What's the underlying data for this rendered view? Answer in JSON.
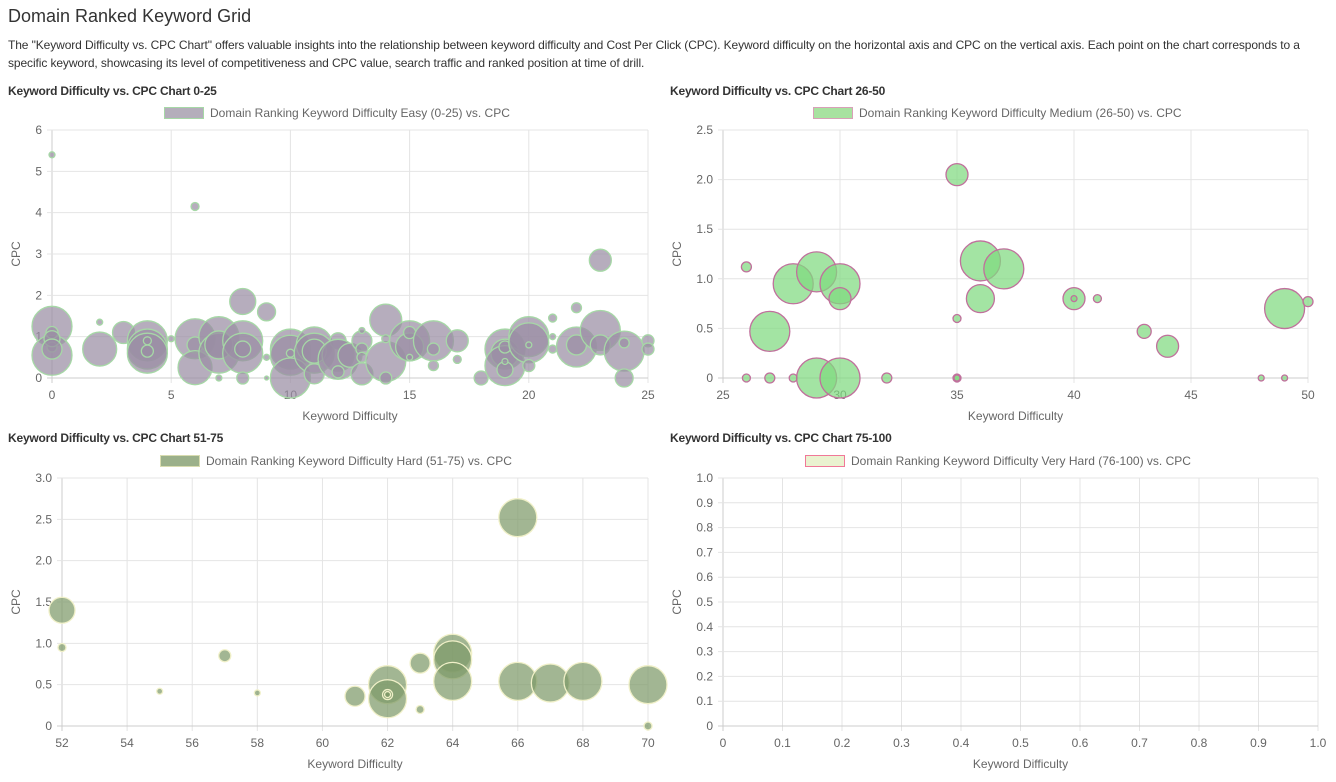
{
  "page": {
    "title": "Domain Ranked Keyword Grid",
    "intro": "The \"Keyword Difficulty vs. CPC Chart\" offers valuable insights into the relationship between keyword difficulty and Cost Per Click (CPC). Keyword difficulty on the horizontal axis and CPC on the vertical axis. Each point on the chart corresponds to a specific keyword, showcasing its level of competitiveness and CPC value, search traffic and ranked position at time of drill."
  },
  "chart_data": [
    {
      "type": "scatter",
      "title": "Keyword Difficulty vs. CPC Chart 0-25",
      "legend": "Domain Ranking Keyword Difficulty Easy (0-25) vs. CPC",
      "legend_position": "top",
      "xlabel": "Keyword Difficulty",
      "ylabel": "CPC",
      "xlim": [
        0,
        25
      ],
      "ylim": [
        0,
        6
      ],
      "xticks": [
        "0",
        "5",
        "10",
        "15",
        "20",
        "25"
      ],
      "yticks": [
        "0",
        "1",
        "2",
        "3",
        "4",
        "5",
        "6"
      ],
      "grid": true,
      "colors": {
        "fill": "#9a8ea3",
        "border": "#a6d8a6",
        "legend_fill": "#b4aebb",
        "legend_border": "#a6d8a6"
      },
      "points": [
        {
          "x": 0,
          "y": 5.4,
          "r": 3
        },
        {
          "x": 0,
          "y": 1.25,
          "r": 20
        },
        {
          "x": 0,
          "y": 0.55,
          "r": 20
        },
        {
          "x": 0,
          "y": 1.1,
          "r": 6
        },
        {
          "x": 0,
          "y": 0.75,
          "r": 5
        },
        {
          "x": 0,
          "y": 0.95,
          "r": 8
        },
        {
          "x": 0,
          "y": 0.7,
          "r": 10
        },
        {
          "x": 2,
          "y": 1.35,
          "r": 3
        },
        {
          "x": 2,
          "y": 0.7,
          "r": 17
        },
        {
          "x": 3,
          "y": 1.1,
          "r": 11
        },
        {
          "x": 4,
          "y": 0.9,
          "r": 20
        },
        {
          "x": 4,
          "y": 0.7,
          "r": 20
        },
        {
          "x": 4,
          "y": 0.6,
          "r": 20
        },
        {
          "x": 4,
          "y": 0.9,
          "r": 4
        },
        {
          "x": 4,
          "y": 0.65,
          "r": 6
        },
        {
          "x": 5,
          "y": 0.95,
          "r": 3
        },
        {
          "x": 6,
          "y": 4.15,
          "r": 4
        },
        {
          "x": 6,
          "y": 0.95,
          "r": 20
        },
        {
          "x": 6,
          "y": 0.8,
          "r": 8
        },
        {
          "x": 6,
          "y": 0.25,
          "r": 17
        },
        {
          "x": 7,
          "y": 1.0,
          "r": 20
        },
        {
          "x": 7,
          "y": 0.6,
          "r": 20
        },
        {
          "x": 7,
          "y": 0.8,
          "r": 14
        },
        {
          "x": 7,
          "y": 0.0,
          "r": 3
        },
        {
          "x": 8,
          "y": 1.85,
          "r": 13
        },
        {
          "x": 8,
          "y": 0.9,
          "r": 20
        },
        {
          "x": 8,
          "y": 0.6,
          "r": 20
        },
        {
          "x": 8,
          "y": 0.7,
          "r": 8
        },
        {
          "x": 8,
          "y": 0.0,
          "r": 6
        },
        {
          "x": 9,
          "y": 1.6,
          "r": 9
        },
        {
          "x": 9,
          "y": 0.5,
          "r": 3
        },
        {
          "x": 9,
          "y": 0.0,
          "r": 2
        },
        {
          "x": 10,
          "y": 0.7,
          "r": 20
        },
        {
          "x": 10,
          "y": 0.55,
          "r": 20
        },
        {
          "x": 10,
          "y": 0.0,
          "r": 20
        },
        {
          "x": 10,
          "y": 0.6,
          "r": 4
        },
        {
          "x": 11,
          "y": 0.8,
          "r": 18
        },
        {
          "x": 11,
          "y": 0.6,
          "r": 20
        },
        {
          "x": 11,
          "y": 0.65,
          "r": 12
        },
        {
          "x": 11,
          "y": 0.1,
          "r": 10
        },
        {
          "x": 12,
          "y": 0.9,
          "r": 8
        },
        {
          "x": 12,
          "y": 0.55,
          "r": 16
        },
        {
          "x": 12,
          "y": 0.45,
          "r": 20
        },
        {
          "x": 12,
          "y": 0.15,
          "r": 6
        },
        {
          "x": 12.5,
          "y": 0.55,
          "r": 12
        },
        {
          "x": 13,
          "y": 0.9,
          "r": 10
        },
        {
          "x": 13,
          "y": 0.7,
          "r": 6
        },
        {
          "x": 13,
          "y": 0.5,
          "r": 5
        },
        {
          "x": 13,
          "y": 1.15,
          "r": 3
        },
        {
          "x": 13,
          "y": 0.1,
          "r": 11
        },
        {
          "x": 14,
          "y": 1.4,
          "r": 16
        },
        {
          "x": 14,
          "y": 0.4,
          "r": 20
        },
        {
          "x": 14,
          "y": 0.0,
          "r": 6
        },
        {
          "x": 14,
          "y": 0.95,
          "r": 4
        },
        {
          "x": 15,
          "y": 0.9,
          "r": 20
        },
        {
          "x": 15,
          "y": 0.75,
          "r": 14
        },
        {
          "x": 15,
          "y": 1.1,
          "r": 6
        },
        {
          "x": 15,
          "y": 0.5,
          "r": 3
        },
        {
          "x": 16,
          "y": 0.9,
          "r": 20
        },
        {
          "x": 16,
          "y": 0.7,
          "r": 6
        },
        {
          "x": 16,
          "y": 0.3,
          "r": 5
        },
        {
          "x": 17,
          "y": 0.9,
          "r": 11
        },
        {
          "x": 17,
          "y": 0.45,
          "r": 4
        },
        {
          "x": 18,
          "y": 0.0,
          "r": 7
        },
        {
          "x": 19,
          "y": 0.7,
          "r": 20
        },
        {
          "x": 19,
          "y": 0.6,
          "r": 14
        },
        {
          "x": 19,
          "y": 0.3,
          "r": 20
        },
        {
          "x": 19,
          "y": 0.2,
          "r": 8
        },
        {
          "x": 19,
          "y": 0.4,
          "r": 3
        },
        {
          "x": 19,
          "y": 0.75,
          "r": 6
        },
        {
          "x": 20,
          "y": 1.0,
          "r": 20
        },
        {
          "x": 20,
          "y": 0.85,
          "r": 20
        },
        {
          "x": 20,
          "y": 0.8,
          "r": 3
        },
        {
          "x": 20,
          "y": 0.3,
          "r": 6
        },
        {
          "x": 21,
          "y": 1.45,
          "r": 4
        },
        {
          "x": 21,
          "y": 1.0,
          "r": 3
        },
        {
          "x": 21,
          "y": 0.7,
          "r": 4
        },
        {
          "x": 22,
          "y": 1.7,
          "r": 5
        },
        {
          "x": 22,
          "y": 0.75,
          "r": 20
        },
        {
          "x": 22,
          "y": 0.8,
          "r": 10
        },
        {
          "x": 23,
          "y": 2.85,
          "r": 11
        },
        {
          "x": 23,
          "y": 1.15,
          "r": 20
        },
        {
          "x": 23,
          "y": 0.8,
          "r": 10
        },
        {
          "x": 24,
          "y": 0.65,
          "r": 20
        },
        {
          "x": 24,
          "y": 0.85,
          "r": 5
        },
        {
          "x": 24,
          "y": 0.0,
          "r": 9
        },
        {
          "x": 25,
          "y": 0.9,
          "r": 6
        },
        {
          "x": 25,
          "y": 0.7,
          "r": 6
        }
      ]
    },
    {
      "type": "scatter",
      "title": "Keyword Difficulty vs. CPC Chart 26-50",
      "legend": "Domain Ranking Keyword Difficulty Medium (26-50) vs. CPC",
      "legend_position": "top",
      "xlabel": "Keyword Difficulty",
      "ylabel": "CPC",
      "xlim": [
        25,
        50
      ],
      "ylim": [
        0,
        2.5
      ],
      "xticks": [
        "25",
        "30",
        "35",
        "40",
        "45",
        "50"
      ],
      "yticks": [
        "0",
        "0.5",
        "1.0",
        "1.5",
        "2.0",
        "2.5"
      ],
      "grid": true,
      "colors": {
        "fill": "#7fd97f",
        "border": "#c0709c",
        "legend_fill": "#a8e2a0",
        "legend_border": "#d8a0b8"
      },
      "points": [
        {
          "x": 26,
          "y": 1.12,
          "r": 5
        },
        {
          "x": 26,
          "y": 0.0,
          "r": 4
        },
        {
          "x": 27,
          "y": 0.47,
          "r": 20
        },
        {
          "x": 27,
          "y": 0.0,
          "r": 5
        },
        {
          "x": 28,
          "y": 0.95,
          "r": 20
        },
        {
          "x": 28,
          "y": 0.0,
          "r": 4
        },
        {
          "x": 29,
          "y": 1.07,
          "r": 20
        },
        {
          "x": 29,
          "y": 0.0,
          "r": 20
        },
        {
          "x": 30,
          "y": 0.95,
          "r": 20
        },
        {
          "x": 30,
          "y": 0.8,
          "r": 11
        },
        {
          "x": 30,
          "y": 0.0,
          "r": 20
        },
        {
          "x": 32,
          "y": 0.0,
          "r": 5
        },
        {
          "x": 35,
          "y": 2.05,
          "r": 11
        },
        {
          "x": 35,
          "y": 0.6,
          "r": 4
        },
        {
          "x": 35,
          "y": 0.0,
          "r": 4
        },
        {
          "x": 35,
          "y": 0.0,
          "r": 3
        },
        {
          "x": 36,
          "y": 1.18,
          "r": 20
        },
        {
          "x": 36,
          "y": 0.8,
          "r": 14
        },
        {
          "x": 37,
          "y": 1.1,
          "r": 20
        },
        {
          "x": 40,
          "y": 0.8,
          "r": 11
        },
        {
          "x": 40,
          "y": 0.8,
          "r": 3
        },
        {
          "x": 41,
          "y": 0.8,
          "r": 4
        },
        {
          "x": 43,
          "y": 0.47,
          "r": 7
        },
        {
          "x": 44,
          "y": 0.32,
          "r": 11
        },
        {
          "x": 48,
          "y": 0.0,
          "r": 3
        },
        {
          "x": 49,
          "y": 0.7,
          "r": 20
        },
        {
          "x": 49,
          "y": 0.0,
          "r": 3
        },
        {
          "x": 50,
          "y": 0.77,
          "r": 5
        }
      ]
    },
    {
      "type": "scatter",
      "title": "Keyword Difficulty vs. CPC Chart 51-75",
      "legend": "Domain Ranking Keyword Difficulty Hard (51-75) vs. CPC",
      "legend_position": "top",
      "xlabel": "Keyword Difficulty",
      "ylabel": "CPC",
      "xlim": [
        52,
        70
      ],
      "ylim": [
        0,
        3.0
      ],
      "xticks": [
        "52",
        "54",
        "56",
        "58",
        "60",
        "62",
        "64",
        "66",
        "68",
        "70"
      ],
      "yticks": [
        "0",
        "0.5",
        "1.0",
        "1.5",
        "2.0",
        "2.5",
        "3.0"
      ],
      "grid": true,
      "colors": {
        "fill": "#7e9a6a",
        "border": "#f0f0c8",
        "legend_fill": "#9bb08a",
        "legend_border": "#d8dcb0"
      },
      "points": [
        {
          "x": 52,
          "y": 1.4,
          "r": 13
        },
        {
          "x": 52,
          "y": 0.95,
          "r": 4
        },
        {
          "x": 55,
          "y": 0.42,
          "r": 3
        },
        {
          "x": 57,
          "y": 0.85,
          "r": 6
        },
        {
          "x": 58,
          "y": 0.4,
          "r": 3
        },
        {
          "x": 61,
          "y": 0.36,
          "r": 10
        },
        {
          "x": 62,
          "y": 0.5,
          "r": 19
        },
        {
          "x": 62,
          "y": 0.33,
          "r": 19
        },
        {
          "x": 62,
          "y": 0.38,
          "r": 5
        },
        {
          "x": 62,
          "y": 0.38,
          "r": 3
        },
        {
          "x": 63,
          "y": 0.76,
          "r": 10
        },
        {
          "x": 63,
          "y": 0.2,
          "r": 4
        },
        {
          "x": 64,
          "y": 0.88,
          "r": 19
        },
        {
          "x": 64,
          "y": 0.8,
          "r": 19
        },
        {
          "x": 64,
          "y": 0.54,
          "r": 19
        },
        {
          "x": 66,
          "y": 2.52,
          "r": 19
        },
        {
          "x": 66,
          "y": 0.54,
          "r": 19
        },
        {
          "x": 67,
          "y": 0.52,
          "r": 19
        },
        {
          "x": 68,
          "y": 0.54,
          "r": 19
        },
        {
          "x": 70,
          "y": 0.5,
          "r": 19
        },
        {
          "x": 70,
          "y": 0.0,
          "r": 4
        }
      ]
    },
    {
      "type": "scatter",
      "title": "Keyword Difficulty vs. CPC Chart 75-100",
      "legend": "Domain Ranking Keyword Difficulty Very Hard (76-100) vs. CPC",
      "legend_position": "top",
      "xlabel": "Keyword Difficulty",
      "ylabel": "CPC",
      "xlim": [
        0,
        1.0
      ],
      "ylim": [
        0,
        1.0
      ],
      "xticks": [
        "0",
        "0.1",
        "0.2",
        "0.3",
        "0.4",
        "0.5",
        "0.6",
        "0.7",
        "0.8",
        "0.9",
        "1.0"
      ],
      "yticks": [
        "0",
        "0.1",
        "0.2",
        "0.3",
        "0.4",
        "0.5",
        "0.6",
        "0.7",
        "0.8",
        "0.9",
        "1.0"
      ],
      "grid": true,
      "colors": {
        "fill": "#eaf0c8",
        "border": "#f080a0",
        "legend_fill": "#eaf2d0",
        "legend_border": "#f07898"
      },
      "points": []
    }
  ]
}
